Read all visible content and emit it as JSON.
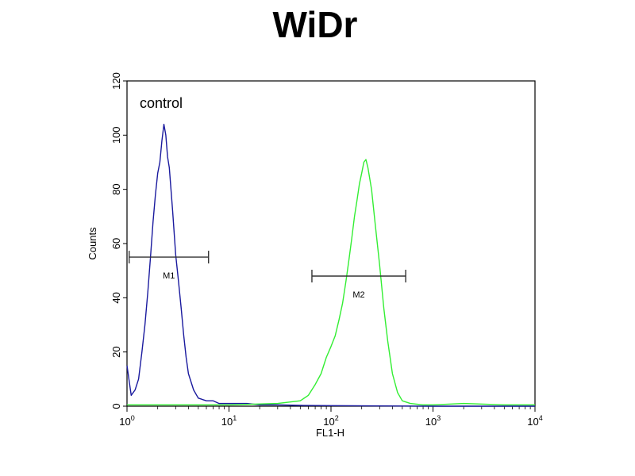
{
  "chart_data": {
    "type": "line",
    "title": "WiDr",
    "xlabel": "FL1-H",
    "ylabel": "Counts",
    "x_scale": "log",
    "xlim": [
      1,
      10000
    ],
    "ylim": [
      0,
      120
    ],
    "x_ticks": [
      {
        "value": 1,
        "base": "10",
        "exp": "0"
      },
      {
        "value": 10,
        "base": "10",
        "exp": "1"
      },
      {
        "value": 100,
        "base": "10",
        "exp": "2"
      },
      {
        "value": 1000,
        "base": "10",
        "exp": "3"
      },
      {
        "value": 10000,
        "base": "10",
        "exp": "4"
      }
    ],
    "y_ticks": [
      0,
      20,
      40,
      60,
      80,
      100,
      120
    ],
    "grid": false,
    "annotation": "control",
    "markers": [
      {
        "label": "M1",
        "x_start": 1.05,
        "x_end": 6.3,
        "y": 55
      },
      {
        "label": "M2",
        "x_start": 65,
        "x_end": 540,
        "y": 48
      }
    ],
    "series": [
      {
        "color": "#1a1a9e",
        "x": [
          1,
          1.1,
          1.2,
          1.3,
          1.4,
          1.5,
          1.6,
          1.7,
          1.8,
          1.9,
          2.0,
          2.1,
          2.2,
          2.3,
          2.4,
          2.5,
          2.6,
          2.7,
          2.8,
          2.9,
          3.0,
          3.2,
          3.4,
          3.6,
          3.8,
          4.0,
          4.5,
          5.0,
          6.0,
          7.0,
          8.0,
          10,
          15,
          20,
          30,
          50,
          100,
          1000,
          10000
        ],
        "y": [
          15,
          4,
          6,
          10,
          20,
          30,
          42,
          55,
          68,
          78,
          86,
          90,
          98,
          104,
          100,
          92,
          88,
          80,
          72,
          64,
          56,
          46,
          36,
          26,
          18,
          12,
          6,
          3,
          2,
          2,
          1,
          1,
          1,
          0.5,
          0.5,
          0.3,
          0.2,
          0,
          0
        ]
      },
      {
        "color": "#33ee33",
        "x": [
          1,
          10,
          30,
          50,
          60,
          70,
          80,
          90,
          100,
          110,
          120,
          130,
          140,
          150,
          160,
          170,
          180,
          190,
          200,
          210,
          220,
          230,
          250,
          270,
          300,
          330,
          360,
          400,
          450,
          500,
          600,
          800,
          1000,
          2000,
          5000,
          10000
        ],
        "y": [
          0.5,
          0.5,
          1,
          2,
          4,
          8,
          12,
          18,
          22,
          26,
          32,
          38,
          46,
          54,
          62,
          70,
          76,
          82,
          86,
          90,
          91,
          88,
          80,
          68,
          52,
          36,
          24,
          12,
          5,
          2,
          1,
          0.5,
          0.5,
          1,
          0.5,
          0.5
        ]
      }
    ]
  }
}
